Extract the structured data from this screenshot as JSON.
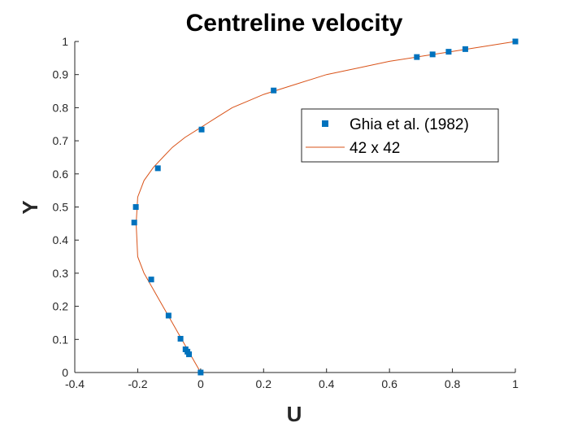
{
  "chart_data": {
    "type": "line",
    "title": "Centreline velocity",
    "xlabel": "U",
    "ylabel": "Y",
    "xlim": [
      -0.4,
      1
    ],
    "ylim": [
      0,
      1
    ],
    "xticks": [
      "-0.4",
      "-0.2",
      "0",
      "0.2",
      "0.4",
      "0.6",
      "0.8",
      "1"
    ],
    "yticks": [
      "0",
      "0.1",
      "0.2",
      "0.3",
      "0.4",
      "0.5",
      "0.6",
      "0.7",
      "0.8",
      "0.9",
      "1"
    ],
    "grid": false,
    "legend_position": "top-right",
    "series": [
      {
        "name": "Ghia et al. (1982)",
        "kind": "scatter",
        "marker": "square",
        "color": "#0072BD",
        "x": [
          0,
          -0.037,
          -0.042,
          -0.048,
          -0.064,
          -0.102,
          -0.157,
          -0.211,
          -0.206,
          -0.136,
          0.003,
          0.232,
          0.687,
          0.737,
          0.788,
          0.841,
          1
        ],
        "y": [
          0,
          0.055,
          0.063,
          0.07,
          0.102,
          0.172,
          0.281,
          0.453,
          0.5,
          0.617,
          0.734,
          0.852,
          0.953,
          0.961,
          0.969,
          0.977,
          1
        ]
      },
      {
        "name": "42 x 42",
        "kind": "line",
        "color": "#D95319",
        "x": [
          0,
          -0.03,
          -0.06,
          -0.09,
          -0.12,
          -0.15,
          -0.18,
          -0.2,
          -0.205,
          -0.2,
          -0.18,
          -0.15,
          -0.12,
          -0.09,
          -0.05,
          0,
          0.05,
          0.1,
          0.15,
          0.2,
          0.25,
          0.3,
          0.4,
          0.5,
          0.6,
          0.7,
          0.8,
          0.9,
          1
        ],
        "y": [
          0,
          0.05,
          0.1,
          0.15,
          0.2,
          0.25,
          0.3,
          0.35,
          0.45,
          0.53,
          0.58,
          0.62,
          0.65,
          0.68,
          0.71,
          0.74,
          0.77,
          0.8,
          0.82,
          0.84,
          0.855,
          0.87,
          0.9,
          0.92,
          0.94,
          0.955,
          0.97,
          0.985,
          1
        ]
      }
    ]
  }
}
